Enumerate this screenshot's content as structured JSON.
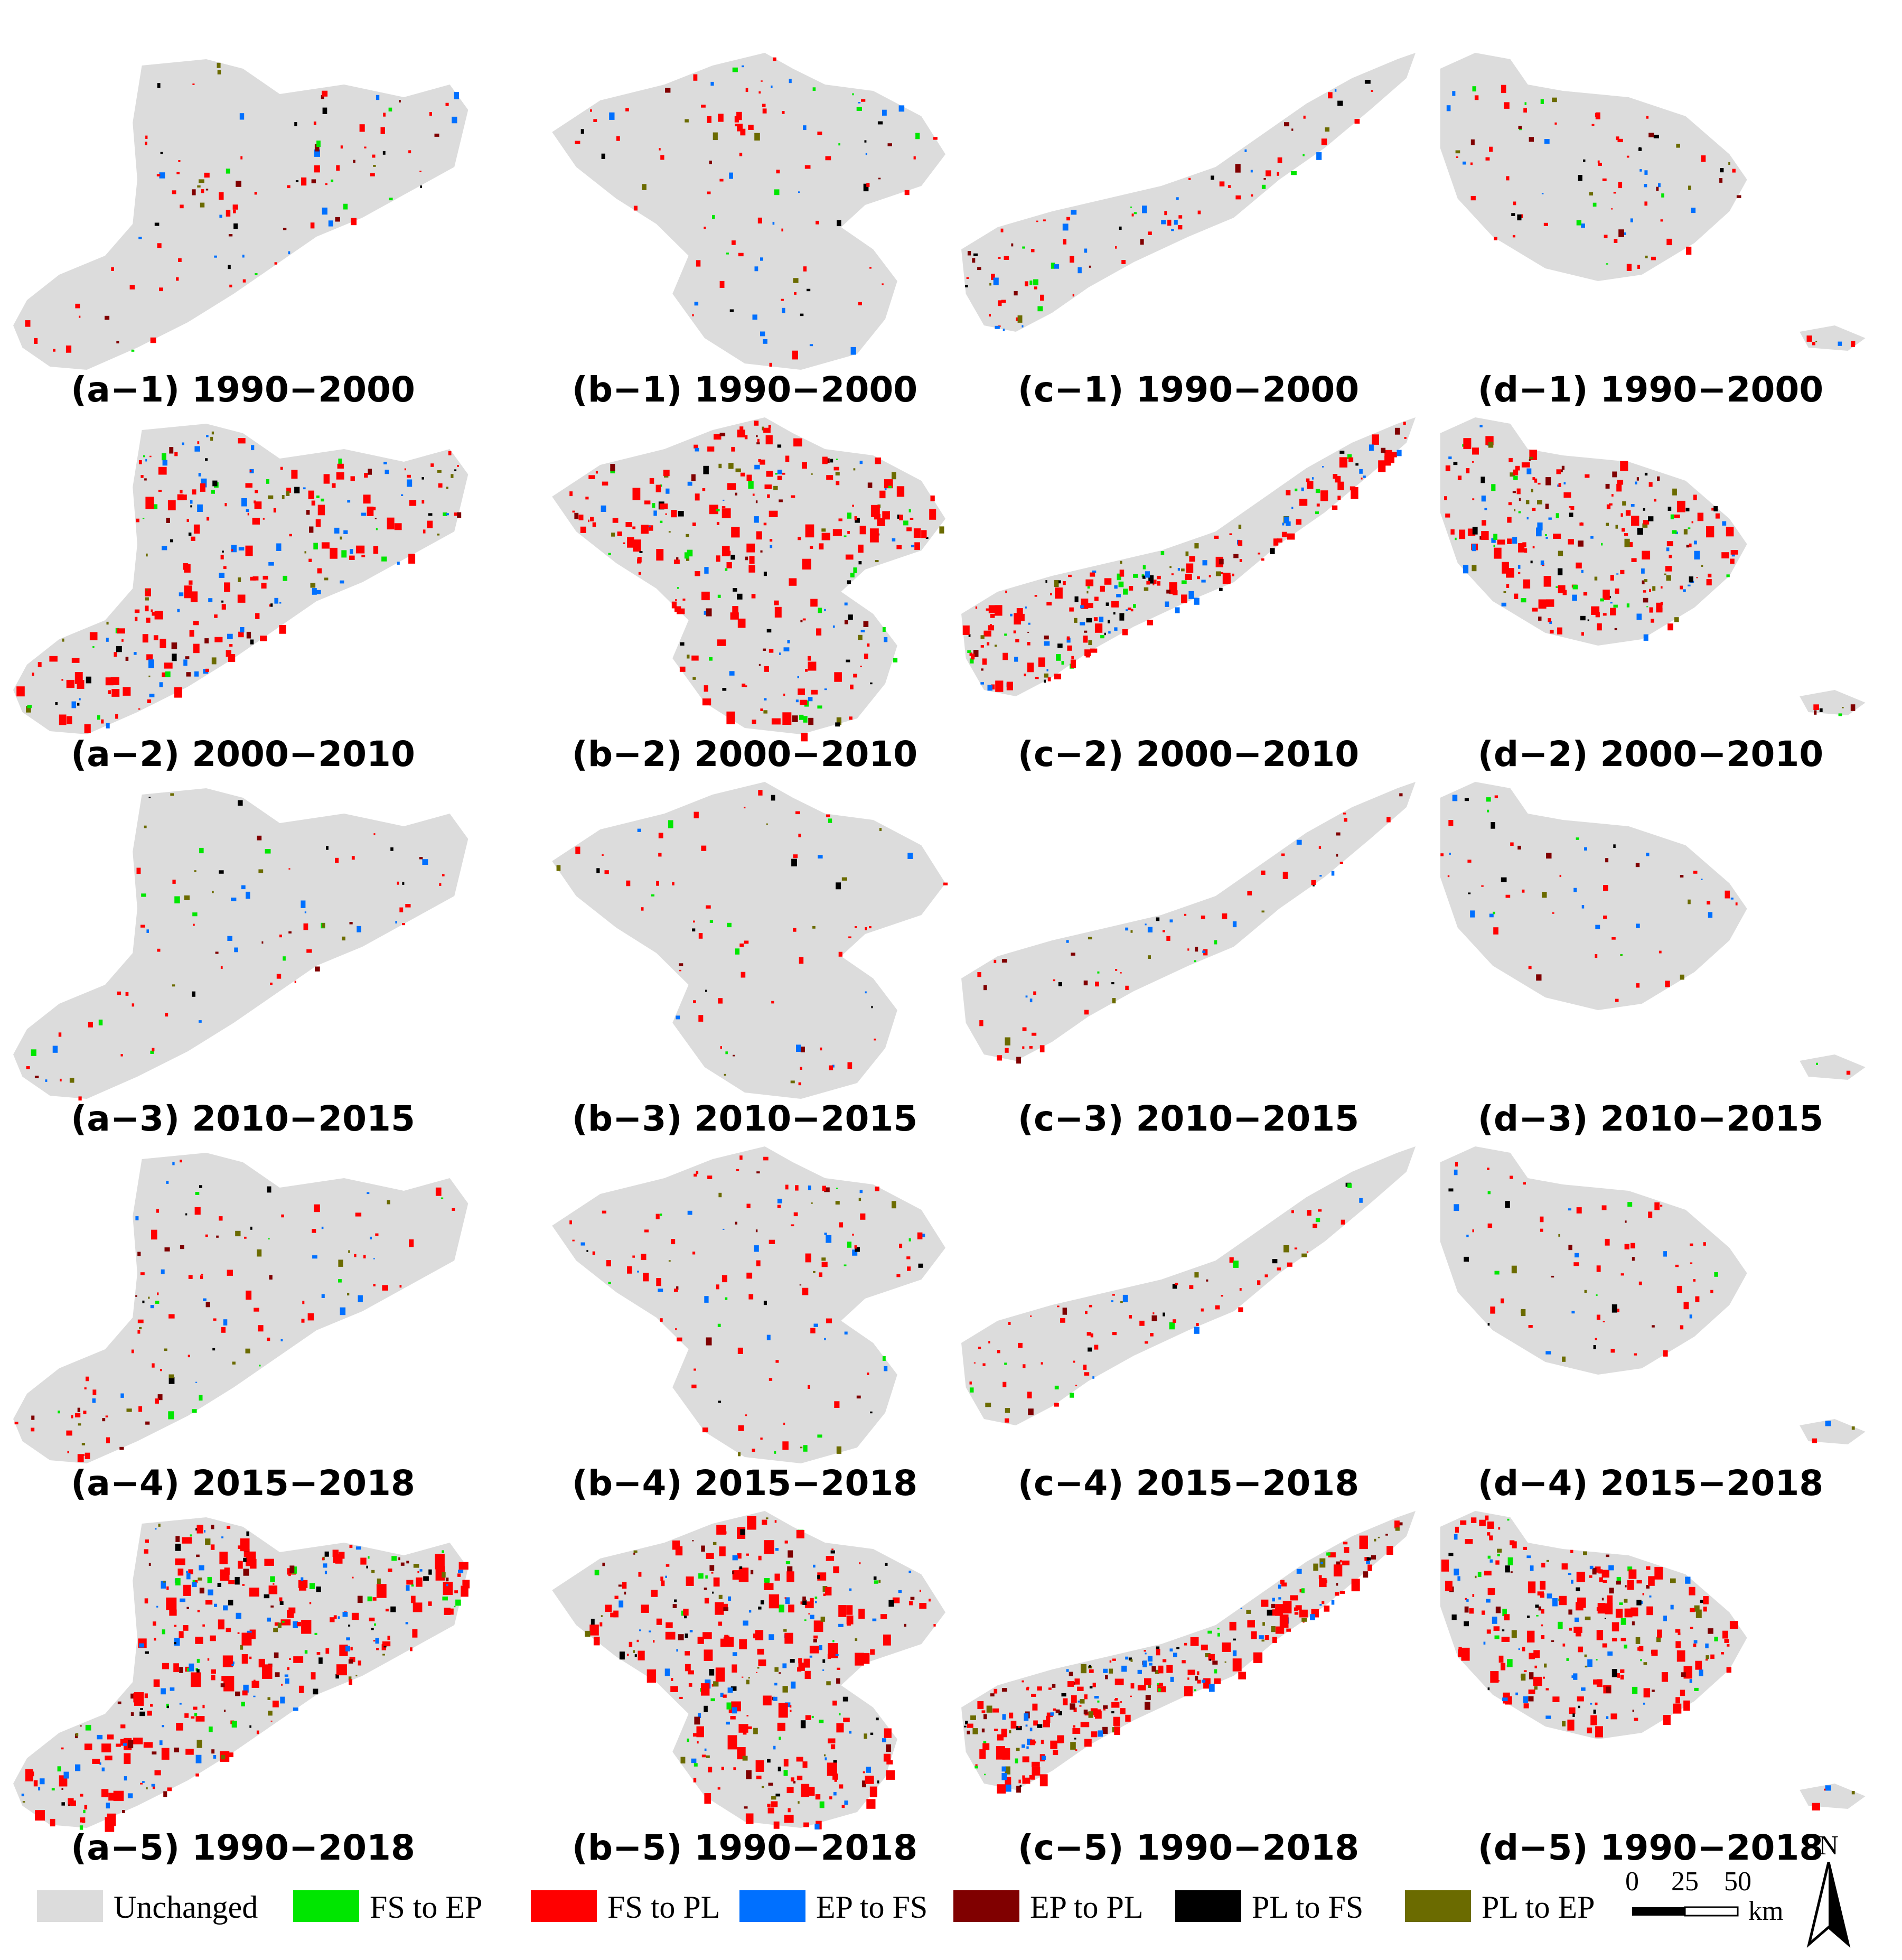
{
  "colors": {
    "unchanged": "#dcdcdc",
    "fs_to_ep": "#00e600",
    "fs_to_pl": "#ff0000",
    "ep_to_fs": "#0070ff",
    "ep_to_pl": "#800000",
    "pl_to_fs": "#000000",
    "pl_to_ep": "#6b6b00"
  },
  "regions": [
    "a",
    "b",
    "c",
    "d"
  ],
  "periods": [
    "1990-2000",
    "2000-2010",
    "2010-2015",
    "2015-2018",
    "1990-2018"
  ],
  "panels": [
    {
      "id": "a-1",
      "label": "(a−1) 1990−2000",
      "density": 0.15
    },
    {
      "id": "b-1",
      "label": "(b−1) 1990−2000",
      "density": 0.15
    },
    {
      "id": "c-1",
      "label": "(c−1) 1990−2000",
      "density": 0.12
    },
    {
      "id": "d-1",
      "label": "(d−1) 1990−2000",
      "density": 0.12
    },
    {
      "id": "a-2",
      "label": "(a−2) 2000−2010",
      "density": 0.55
    },
    {
      "id": "b-2",
      "label": "(b−2) 2000−2010",
      "density": 0.6
    },
    {
      "id": "c-2",
      "label": "(c−2) 2000−2010",
      "density": 0.45
    },
    {
      "id": "d-2",
      "label": "(d−2) 2000−2010",
      "density": 0.5
    },
    {
      "id": "a-3",
      "label": "(a−3) 2010−2015",
      "density": 0.1
    },
    {
      "id": "b-3",
      "label": "(b−3) 2010−2015",
      "density": 0.08
    },
    {
      "id": "c-3",
      "label": "(c−3) 2010−2015",
      "density": 0.07
    },
    {
      "id": "d-3",
      "label": "(d−3) 2010−2015",
      "density": 0.05
    },
    {
      "id": "a-4",
      "label": "(a−4) 2015−2018",
      "density": 0.2
    },
    {
      "id": "b-4",
      "label": "(b−4) 2015−2018",
      "density": 0.2
    },
    {
      "id": "c-4",
      "label": "(c−4) 2015−2018",
      "density": 0.1
    },
    {
      "id": "d-4",
      "label": "(d−4) 2015−2018",
      "density": 0.08
    },
    {
      "id": "a-5",
      "label": "(a−5) 1990−2018",
      "density": 0.8
    },
    {
      "id": "b-5",
      "label": "(b−5) 1990−2018",
      "density": 0.75
    },
    {
      "id": "c-5",
      "label": "(c−5) 1990−2018",
      "density": 0.6
    },
    {
      "id": "d-5",
      "label": "(d−5) 1990−2018",
      "density": 0.55
    }
  ],
  "legend": [
    {
      "key": "unchanged",
      "label": "Unchanged"
    },
    {
      "key": "fs_to_ep",
      "label": "FS to EP"
    },
    {
      "key": "fs_to_pl",
      "label": "FS to PL"
    },
    {
      "key": "ep_to_fs",
      "label": "EP to FS"
    },
    {
      "key": "ep_to_pl",
      "label": "EP to PL"
    },
    {
      "key": "pl_to_fs",
      "label": "PL to FS"
    },
    {
      "key": "pl_to_ep",
      "label": "PL to EP"
    }
  ],
  "north_arrow": {
    "label": "N"
  },
  "scale_bar": {
    "ticks": [
      "0",
      "25",
      "50"
    ],
    "unit": "km"
  }
}
